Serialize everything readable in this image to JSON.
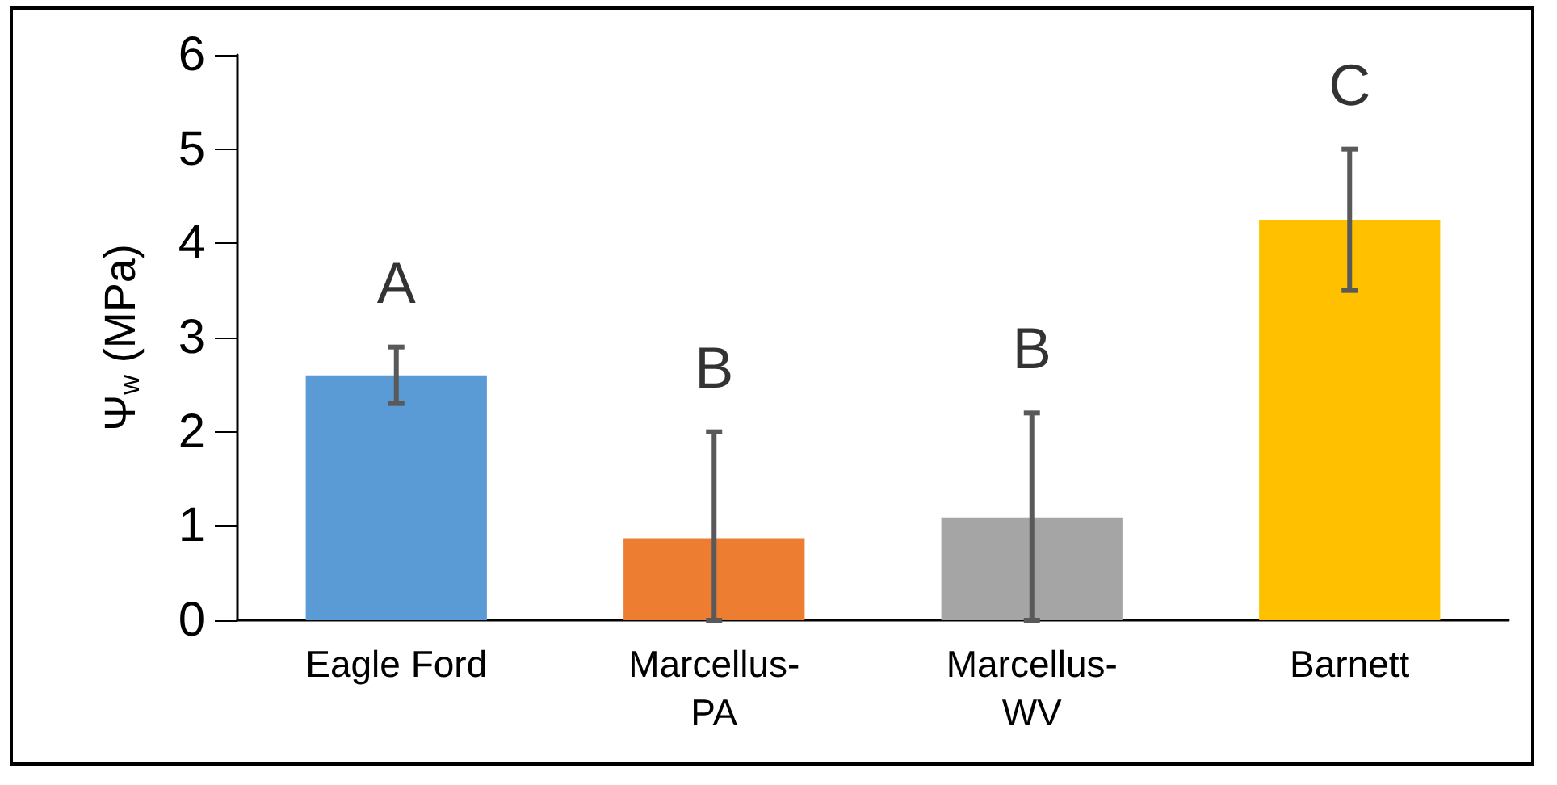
{
  "chart_data": {
    "type": "bar",
    "ylabel": "Ψ$_{w}$ (MPa)",
    "categories": [
      "Eagle Ford",
      "Marcellus-PA",
      "Marcellus-WV",
      "Barnett"
    ],
    "values": [
      2.6,
      0.87,
      1.09,
      4.25
    ],
    "colors": [
      "#5b9bd5",
      "#ed7d31",
      "#a5a5a5",
      "#ffc000"
    ],
    "errors": [
      [
        2.3,
        2.9
      ],
      [
        0,
        2.0
      ],
      [
        0,
        2.2
      ],
      [
        3.5,
        5.0
      ]
    ],
    "annotations": [
      "A",
      "B",
      "B",
      "C"
    ],
    "ylim": [
      0,
      6
    ],
    "yticks": [
      0,
      1,
      2,
      3,
      4,
      5,
      6
    ],
    "grid": false
  }
}
